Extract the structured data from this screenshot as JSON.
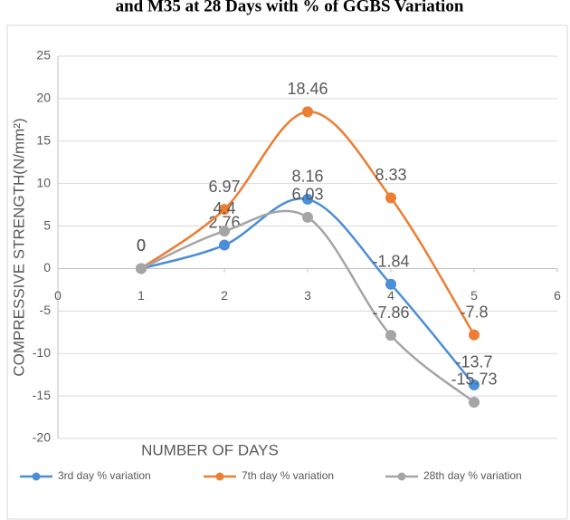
{
  "chart_data": {
    "type": "line",
    "title": "and M35 at 28 Days with % of GGBS Variation",
    "x_label": "NUMBER OF DAYS",
    "y_label": "COMPRESSIVE STRENGTH(N/mm²)",
    "x": [
      1,
      2,
      3,
      4,
      5
    ],
    "series": [
      {
        "name": "3rd day % variation",
        "color": "#4a8fd8",
        "values": [
          0,
          2.76,
          8.16,
          -1.84,
          -13.7
        ]
      },
      {
        "name": "7th day % variation",
        "color": "#ed7d31",
        "values": [
          0,
          6.97,
          18.46,
          8.33,
          -7.8
        ]
      },
      {
        "name": "28th day % variation",
        "color": "#a5a5a5",
        "values": [
          0,
          4.4,
          6.03,
          -7.86,
          -15.73
        ]
      }
    ],
    "xlim": [
      0,
      6
    ],
    "xticks": [
      0,
      1,
      2,
      3,
      4,
      5,
      6
    ],
    "ylim": [
      -20,
      25
    ],
    "yticks": [
      -20,
      -15,
      -10,
      -5,
      0,
      5,
      10,
      15,
      20,
      25
    ],
    "grid": true,
    "smooth": true,
    "legend": "bottom"
  }
}
